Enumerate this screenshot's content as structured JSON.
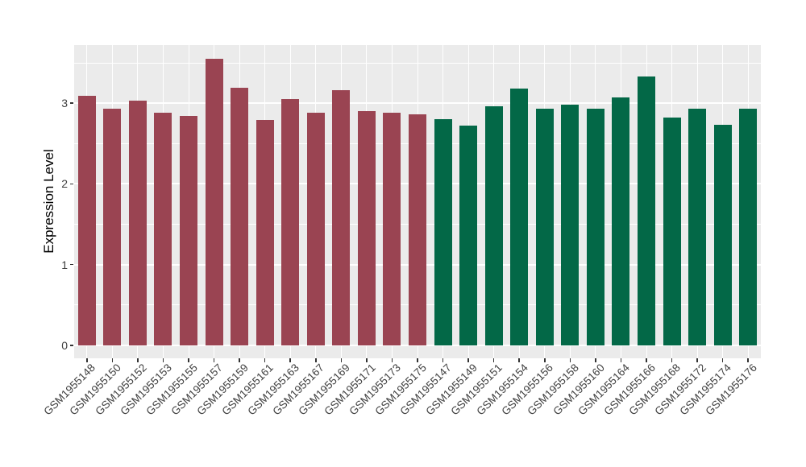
{
  "figure": {
    "background": "#FFFFFF",
    "panel_background": "#EBEBEB",
    "gridline_color": "#FFFFFF",
    "tick_mark_color": "#333333",
    "tick_label_color": "#404040",
    "axis_title_color": "#000000"
  },
  "chart_data": {
    "type": "bar",
    "title": "",
    "xlabel": "",
    "ylabel": "Expression Level",
    "legend": "none",
    "grid": "major-and-minor, white on gray panel (ggplot style)",
    "ylim": [
      -0.16,
      3.72
    ],
    "y_ticks": [
      0,
      1,
      2,
      3
    ],
    "y_minor": [
      0.5,
      1.5,
      2.5,
      3.5
    ],
    "group_colors": {
      "groupA": "#9A4452",
      "groupB": "#036847"
    },
    "bars": [
      {
        "label": "GSM1955148",
        "value": 3.09,
        "group": "groupA"
      },
      {
        "label": "GSM1955150",
        "value": 2.93,
        "group": "groupA"
      },
      {
        "label": "GSM1955152",
        "value": 3.03,
        "group": "groupA"
      },
      {
        "label": "GSM1955153",
        "value": 2.88,
        "group": "groupA"
      },
      {
        "label": "GSM1955155",
        "value": 2.84,
        "group": "groupA"
      },
      {
        "label": "GSM1955157",
        "value": 3.55,
        "group": "groupA"
      },
      {
        "label": "GSM1955159",
        "value": 3.19,
        "group": "groupA"
      },
      {
        "label": "GSM1955161",
        "value": 2.79,
        "group": "groupA"
      },
      {
        "label": "GSM1955163",
        "value": 3.05,
        "group": "groupA"
      },
      {
        "label": "GSM1955167",
        "value": 2.88,
        "group": "groupA"
      },
      {
        "label": "GSM1955169",
        "value": 3.16,
        "group": "groupA"
      },
      {
        "label": "GSM1955171",
        "value": 2.9,
        "group": "groupA"
      },
      {
        "label": "GSM1955173",
        "value": 2.88,
        "group": "groupA"
      },
      {
        "label": "GSM1955175",
        "value": 2.86,
        "group": "groupA"
      },
      {
        "label": "GSM1955147",
        "value": 2.8,
        "group": "groupB"
      },
      {
        "label": "GSM1955149",
        "value": 2.72,
        "group": "groupB"
      },
      {
        "label": "GSM1955151",
        "value": 2.96,
        "group": "groupB"
      },
      {
        "label": "GSM1955154",
        "value": 3.18,
        "group": "groupB"
      },
      {
        "label": "GSM1955156",
        "value": 2.93,
        "group": "groupB"
      },
      {
        "label": "GSM1955158",
        "value": 2.98,
        "group": "groupB"
      },
      {
        "label": "GSM1955160",
        "value": 2.93,
        "group": "groupB"
      },
      {
        "label": "GSM1955164",
        "value": 3.07,
        "group": "groupB"
      },
      {
        "label": "GSM1955166",
        "value": 3.33,
        "group": "groupB"
      },
      {
        "label": "GSM1955168",
        "value": 2.82,
        "group": "groupB"
      },
      {
        "label": "GSM1955172",
        "value": 2.93,
        "group": "groupB"
      },
      {
        "label": "GSM1955174",
        "value": 2.73,
        "group": "groupB"
      },
      {
        "label": "GSM1955176",
        "value": 2.93,
        "group": "groupB"
      }
    ]
  }
}
